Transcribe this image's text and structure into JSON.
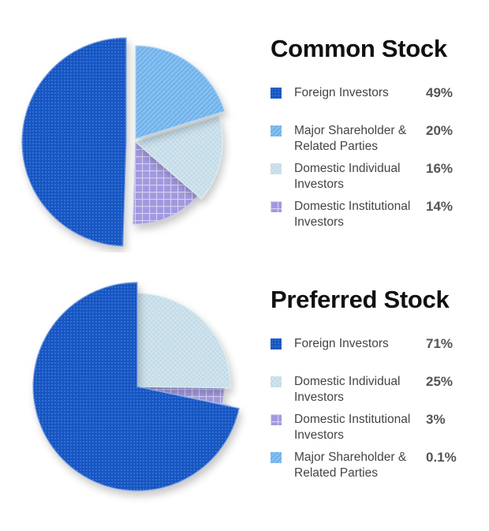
{
  "colors": {
    "foreign": "#1556c4",
    "major": "#72b4ec",
    "individual": "#c2dbe8",
    "institutional": "#a199df"
  },
  "chart_data": [
    {
      "type": "pie",
      "title": "Common Stock",
      "slices": [
        {
          "label": "Foreign Investors",
          "value": 49,
          "display": "49%",
          "color_key": "foreign"
        },
        {
          "label": "Major Shareholder & Related Parties",
          "value": 20,
          "display": "20%",
          "color_key": "major"
        },
        {
          "label": "Domestic Individual Investors",
          "value": 16,
          "display": "16%",
          "color_key": "individual"
        },
        {
          "label": "Domestic Institutional Investors",
          "value": 14,
          "display": "14%",
          "color_key": "institutional"
        }
      ]
    },
    {
      "type": "pie",
      "title": "Preferred Stock",
      "slices": [
        {
          "label": "Foreign Investors",
          "value": 71,
          "display": "71%",
          "color_key": "foreign"
        },
        {
          "label": "Domestic Individual Investors",
          "value": 25,
          "display": "25%",
          "color_key": "individual"
        },
        {
          "label": "Domestic Institutional Investors",
          "value": 3,
          "display": "3%",
          "color_key": "institutional"
        },
        {
          "label": "Major Shareholder & Related Parties",
          "value": 0.1,
          "display": "0.1%",
          "color_key": "major"
        }
      ]
    }
  ]
}
